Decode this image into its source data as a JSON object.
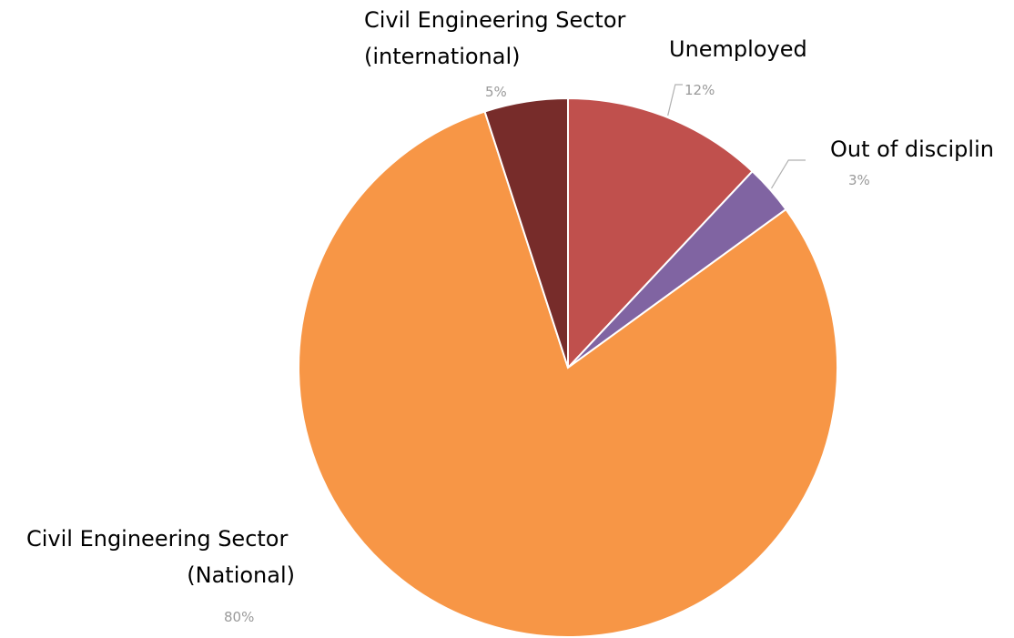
{
  "chart_data": {
    "type": "pie",
    "title": "",
    "slices": [
      {
        "name": "Unemployed",
        "value": 12,
        "pct_label": "12%",
        "color": "#C0504D"
      },
      {
        "name": "Out of disciplin",
        "value": 3,
        "pct_label": "3%",
        "color": "#8064A2"
      },
      {
        "name": "Civil Engineering Sector (National)",
        "value": 80,
        "pct_label": "80%",
        "color": "#F79646"
      },
      {
        "name": "Civil Engineering Sector (international)",
        "value": 5,
        "pct_label": "5%",
        "color": "#772C2A"
      }
    ],
    "start_angle_deg": 0,
    "direction": "clockwise",
    "legend": "none"
  }
}
